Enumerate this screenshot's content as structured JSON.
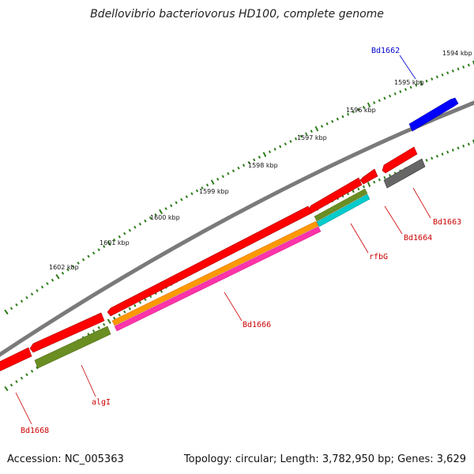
{
  "title": "Bdellovibrio bacteriovorus HD100, complete genome",
  "accession": "Accession: NC_005363",
  "summary": "Topology: circular; Length: 3,782,950 bp; Genes: 3,629",
  "colors": {
    "backbone": "#808080",
    "ticks": "#2e7d1a",
    "gene_red": "#ff0000",
    "gene_blue": "#0000ff",
    "gene_gray": "#606060",
    "gene_olive": "#6b8e23",
    "orange": "#ff9900",
    "magenta": "#ff33aa",
    "cyan": "#00cccc"
  },
  "scale_labels": [
    "1594 kbp",
    "1595 kbp",
    "1596 kbp",
    "1597 kbp",
    "1598 kbp",
    "1599 kbp",
    "1600 kbp",
    "1601 kbp",
    "1602 kbp"
  ],
  "gene_labels": [
    {
      "name": "Bd1662",
      "color": "#0000cc"
    },
    {
      "name": "Bd1663",
      "color": "#cc0000"
    },
    {
      "name": "Bd1664",
      "color": "#cc0000"
    },
    {
      "name": "rfbG",
      "color": "#cc0000"
    },
    {
      "name": "Bd1666",
      "color": "#cc0000"
    },
    {
      "name": "algI",
      "color": "#cc0000"
    },
    {
      "name": "Bd1668",
      "color": "#cc0000"
    }
  ]
}
